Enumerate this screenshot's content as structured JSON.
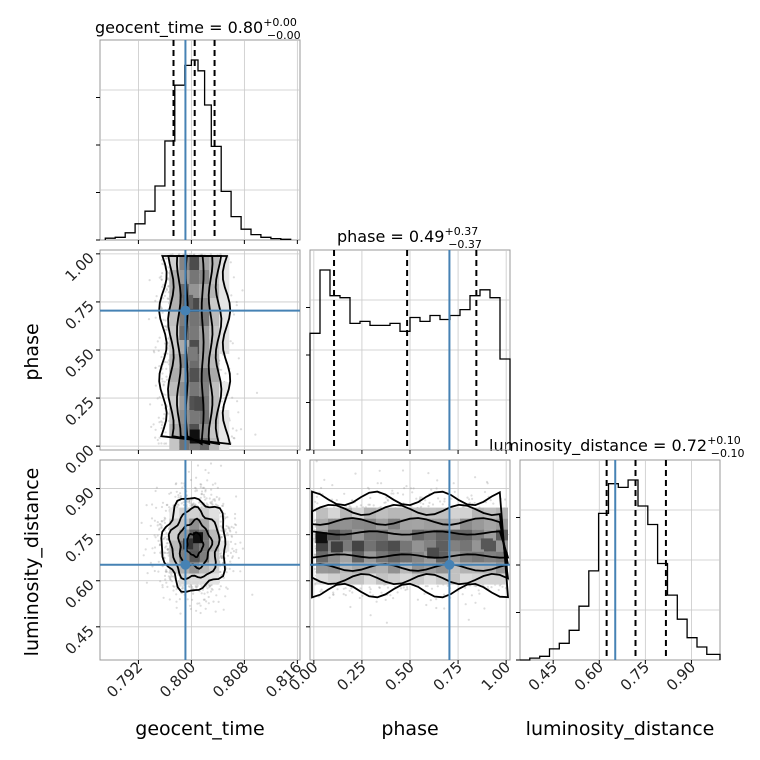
{
  "chart_data": {
    "type": "corner",
    "parameters": [
      "geocent_time",
      "phase",
      "luminosity_distance"
    ],
    "axes": {
      "geocent_time": {
        "range": [
          0.7862,
          0.8164
        ],
        "ticks": [
          0.792,
          0.8,
          0.808,
          0.816
        ],
        "tick_labels": [
          "0.792",
          "0.800",
          "0.808",
          "0.816"
        ]
      },
      "phase": {
        "range": [
          -0.02,
          1.02
        ],
        "ticks": [
          0.0,
          0.25,
          0.5,
          0.75,
          1.0
        ],
        "tick_labels": [
          "0.00",
          "0.25",
          "0.50",
          "0.75",
          "1.00"
        ]
      },
      "luminosity_distance": {
        "range": [
          0.342,
          0.993
        ],
        "ticks": [
          0.45,
          0.6,
          0.75,
          0.9
        ],
        "tick_labels": [
          "0.45",
          "0.60",
          "0.75",
          "0.90"
        ]
      }
    },
    "titles": [
      {
        "param": "geocent_time",
        "name": "geocent_time",
        "median": "0.80",
        "plus": "+0.00",
        "minus": "−0.00"
      },
      {
        "param": "phase",
        "name": "phase",
        "median": "0.49",
        "plus": "+0.37",
        "minus": "−0.37"
      },
      {
        "param": "luminosity_distance",
        "name": "luminosity_distance",
        "median": "0.72",
        "plus": "+0.10",
        "minus": "−0.10"
      }
    ],
    "truths": {
      "geocent_time": 0.7991,
      "phase": 0.705,
      "luminosity_distance": 0.652
    },
    "quantiles": {
      "geocent_time": [
        0.7973,
        0.8005,
        0.8035
      ],
      "phase": [
        0.105,
        0.485,
        0.845
      ],
      "luminosity_distance": [
        0.624,
        0.718,
        0.817
      ]
    },
    "histograms": {
      "geocent_time": {
        "edges": [
          0.787,
          0.7885,
          0.79,
          0.7915,
          0.793,
          0.7945,
          0.796,
          0.7975,
          0.799,
          0.8,
          0.801,
          0.802,
          0.803,
          0.8045,
          0.806,
          0.8075,
          0.809,
          0.8105,
          0.812,
          0.8135,
          0.815
        ],
        "counts": [
          0.01,
          0.015,
          0.04,
          0.09,
          0.16,
          0.3,
          0.55,
          0.86,
          0.97,
          1.0,
          0.94,
          0.75,
          0.52,
          0.27,
          0.13,
          0.06,
          0.03,
          0.015,
          0.008,
          0.004
        ]
      },
      "phase": {
        "edges": [
          -0.02,
          0.032,
          0.084,
          0.136,
          0.188,
          0.24,
          0.292,
          0.344,
          0.396,
          0.448,
          0.5,
          0.552,
          0.604,
          0.656,
          0.708,
          0.76,
          0.812,
          0.864,
          0.916,
          0.968,
          1.02
        ],
        "counts": [
          0.59,
          0.91,
          0.78,
          0.77,
          0.64,
          0.65,
          0.63,
          0.63,
          0.64,
          0.6,
          0.67,
          0.65,
          0.68,
          0.66,
          0.68,
          0.71,
          0.78,
          0.81,
          0.77,
          0.46
        ]
      },
      "luminosity_distance": {
        "edges": [
          0.342,
          0.374,
          0.406,
          0.438,
          0.47,
          0.502,
          0.534,
          0.566,
          0.598,
          0.63,
          0.662,
          0.694,
          0.726,
          0.758,
          0.79,
          0.822,
          0.854,
          0.886,
          0.918,
          0.95,
          0.993
        ],
        "counts": [
          0.0,
          0.01,
          0.02,
          0.06,
          0.09,
          0.16,
          0.29,
          0.48,
          0.79,
          0.95,
          0.93,
          0.97,
          0.83,
          0.73,
          0.52,
          0.35,
          0.22,
          0.12,
          0.07,
          0.03
        ]
      }
    },
    "joint": [
      {
        "x": "geocent_time",
        "y": "phase",
        "center": [
          0.8005,
          0.5
        ],
        "spread": [
          0.0024,
          0.29
        ],
        "points": 2000,
        "density_cells": [
          [
            0.8005,
            0.05,
            1.0
          ],
          [
            0.8012,
            0.22,
            0.75
          ],
          [
            0.7995,
            0.75,
            0.65
          ],
          [
            0.8002,
            0.48,
            0.55
          ]
        ]
      },
      {
        "x": "geocent_time",
        "y": "luminosity_distance",
        "center": [
          0.8005,
          0.718
        ],
        "spread": [
          0.0024,
          0.075
        ],
        "points": 2000,
        "density_cells": [
          [
            0.801,
            0.74,
            1.0
          ],
          [
            0.7995,
            0.72,
            0.85
          ],
          [
            0.8005,
            0.68,
            0.7
          ]
        ]
      },
      {
        "x": "phase",
        "y": "luminosity_distance",
        "center": [
          0.5,
          0.718
        ],
        "spread": [
          0.29,
          0.075
        ],
        "points": 2200,
        "density_cells": [
          [
            0.04,
            0.74,
            1.0
          ],
          [
            0.12,
            0.71,
            0.8
          ],
          [
            0.62,
            0.69,
            0.75
          ],
          [
            0.9,
            0.72,
            0.7
          ]
        ]
      }
    ]
  }
}
